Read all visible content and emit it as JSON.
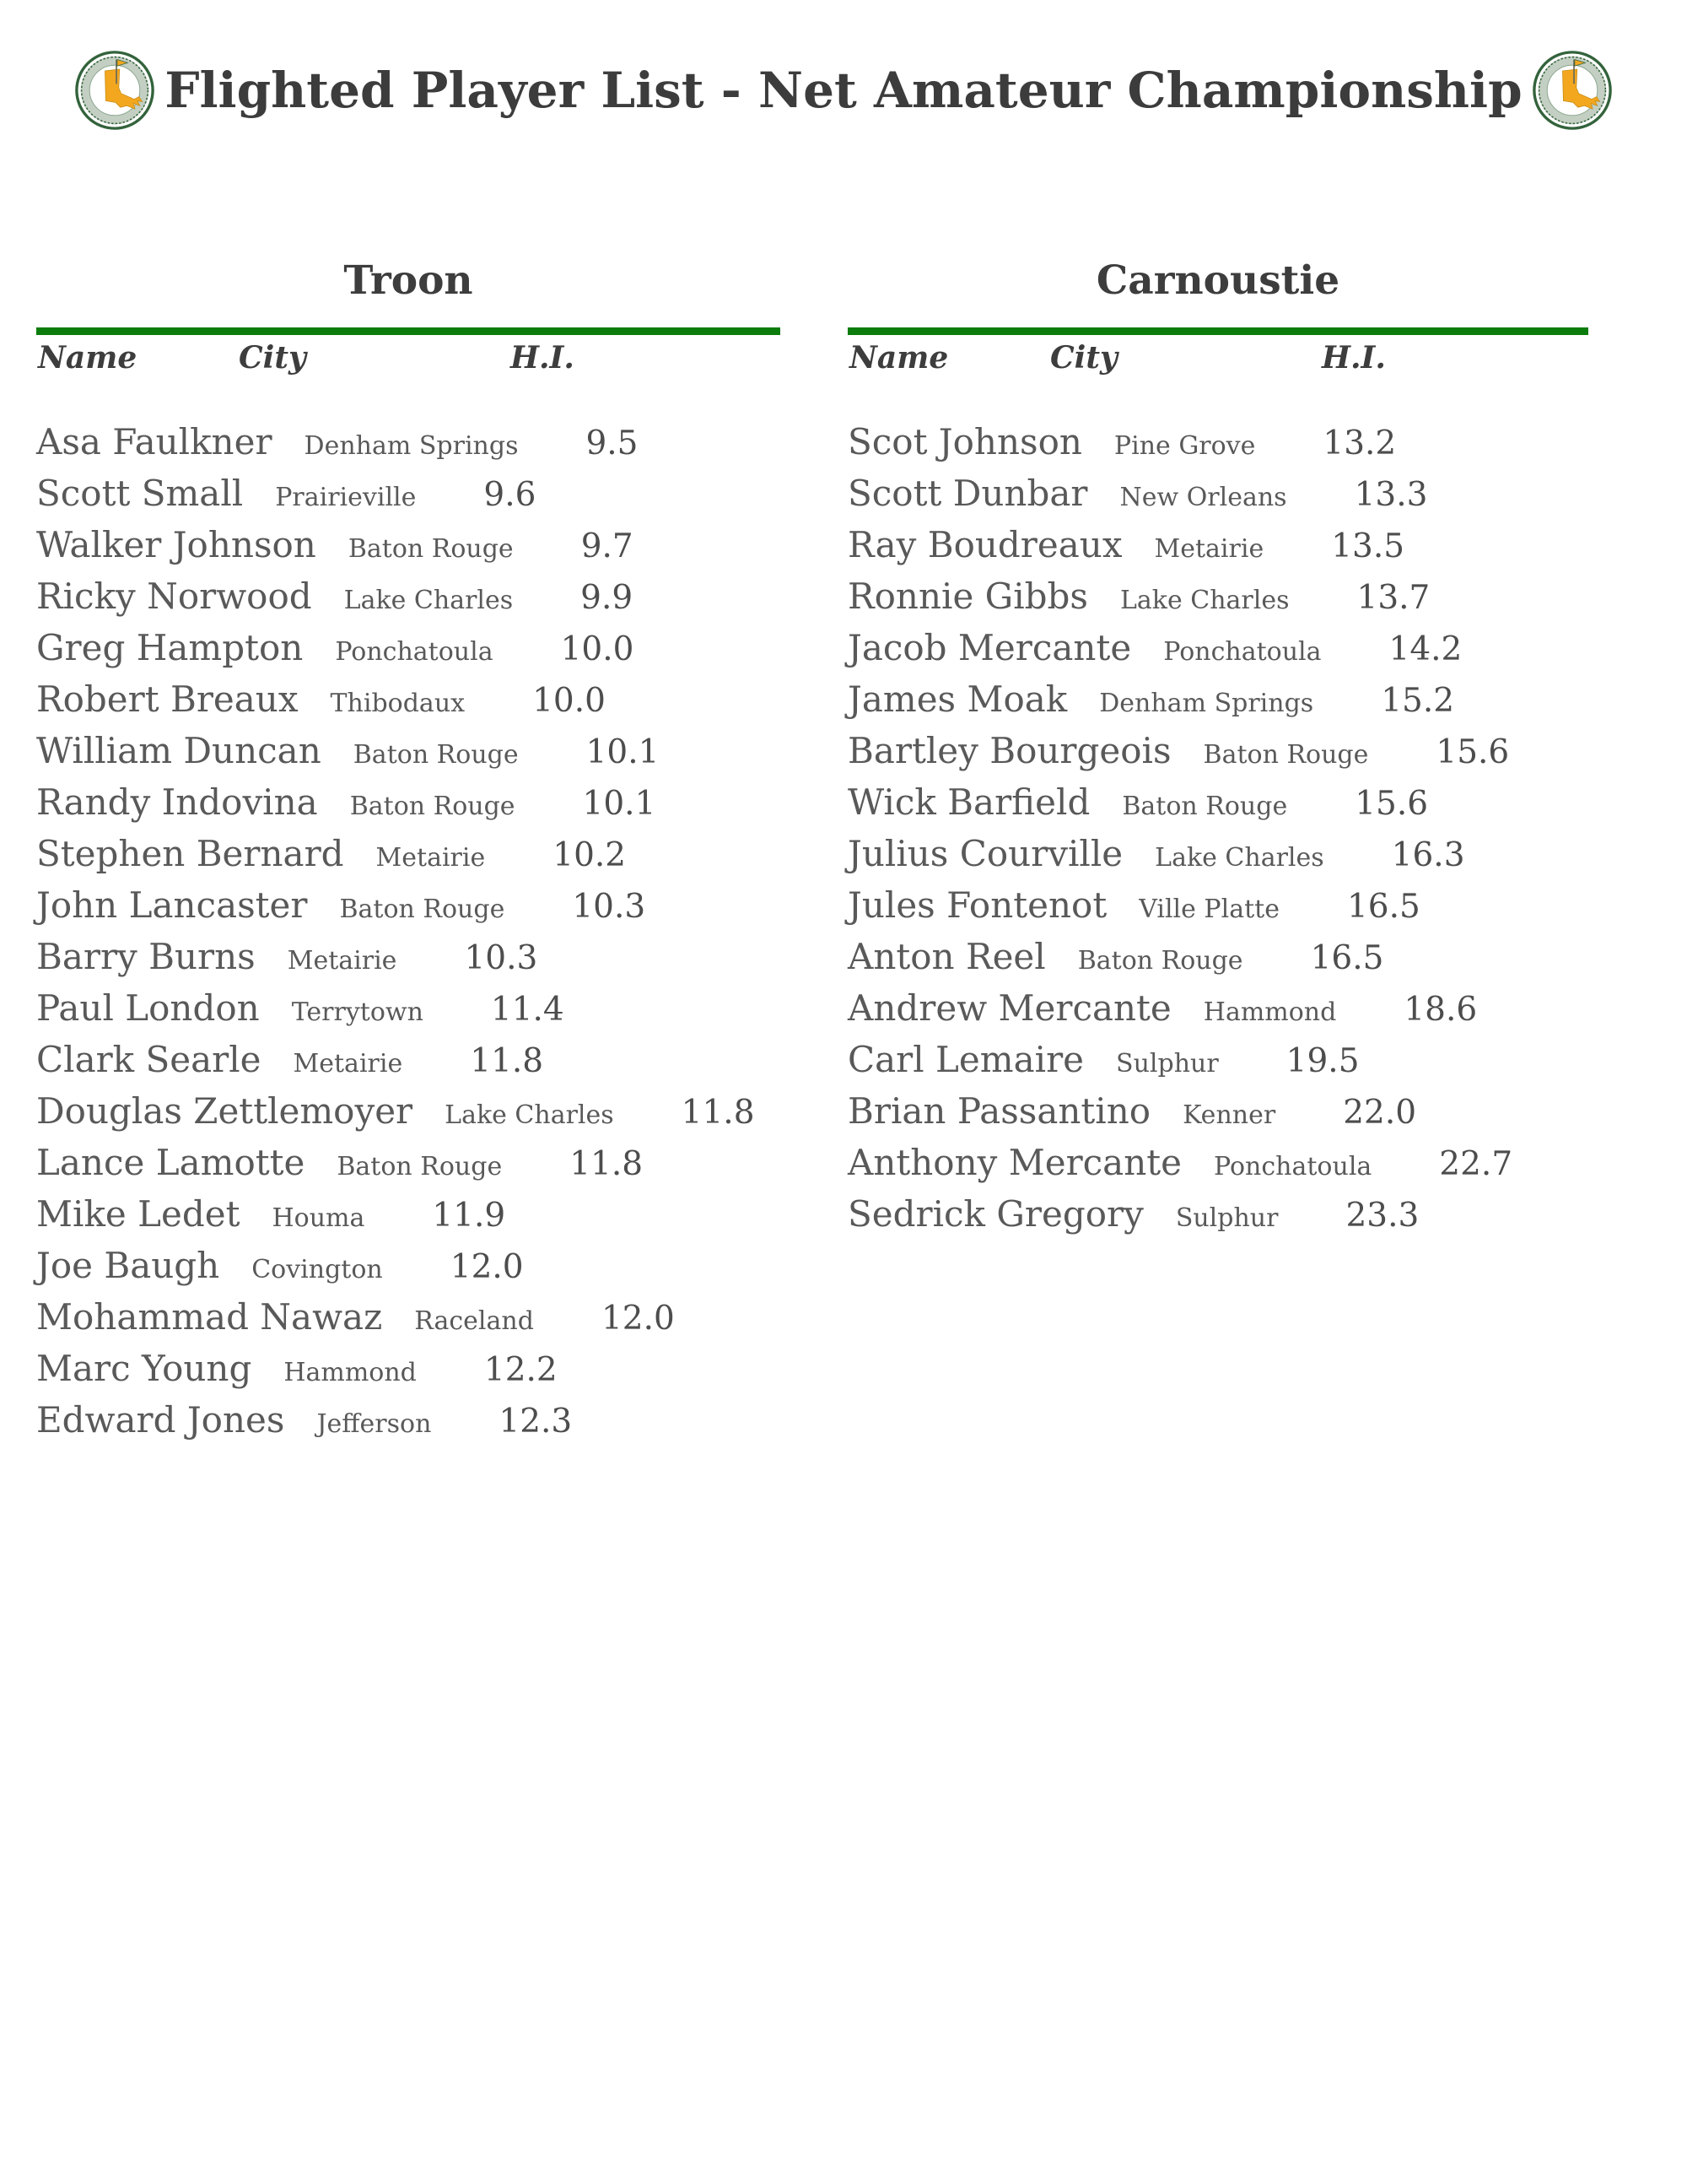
{
  "page": {
    "title": "Flighted Player List - Net Amateur Championship"
  },
  "colors": {
    "accent_green": "#0c7c0c",
    "title_text": "#3c3c3c",
    "player_text": "#595959",
    "logo_gold": "#f2a71f",
    "logo_green": "#33633c"
  },
  "icons": {
    "left_logo": "louisiana-golf-association-seal",
    "right_logo": "louisiana-golf-association-seal"
  },
  "table_headers": {
    "name": "Name",
    "city": "City",
    "hi": "H.I."
  },
  "flights": [
    {
      "name": "Troon",
      "players": [
        {
          "name": "Asa Faulkner",
          "city": "Denham Springs",
          "hi": "9.5"
        },
        {
          "name": "Scott Small",
          "city": "Prairieville",
          "hi": "9.6"
        },
        {
          "name": "Walker Johnson",
          "city": "Baton Rouge",
          "hi": "9.7"
        },
        {
          "name": "Ricky Norwood",
          "city": "Lake Charles",
          "hi": "9.9"
        },
        {
          "name": "Greg Hampton",
          "city": "Ponchatoula",
          "hi": "10.0"
        },
        {
          "name": "Robert Breaux",
          "city": "Thibodaux",
          "hi": "10.0"
        },
        {
          "name": "William Duncan",
          "city": "Baton Rouge",
          "hi": "10.1"
        },
        {
          "name": "Randy Indovina",
          "city": "Baton Rouge",
          "hi": "10.1"
        },
        {
          "name": "Stephen Bernard",
          "city": "Metairie",
          "hi": "10.2"
        },
        {
          "name": "John Lancaster",
          "city": "Baton Rouge",
          "hi": "10.3"
        },
        {
          "name": "Barry Burns",
          "city": "Metairie",
          "hi": "10.3"
        },
        {
          "name": "Paul London",
          "city": "Terrytown",
          "hi": "11.4"
        },
        {
          "name": "Clark Searle",
          "city": "Metairie",
          "hi": "11.8"
        },
        {
          "name": "Douglas Zettlemoyer",
          "city": "Lake Charles",
          "hi": "11.8"
        },
        {
          "name": "Lance Lamotte",
          "city": "Baton Rouge",
          "hi": "11.8"
        },
        {
          "name": "Mike Ledet",
          "city": "Houma",
          "hi": "11.9"
        },
        {
          "name": "Joe Baugh",
          "city": "Covington",
          "hi": "12.0"
        },
        {
          "name": "Mohammad Nawaz",
          "city": "Raceland",
          "hi": "12.0"
        },
        {
          "name": "Marc Young",
          "city": "Hammond",
          "hi": "12.2"
        },
        {
          "name": "Edward Jones",
          "city": "Jefferson",
          "hi": "12.3"
        }
      ]
    },
    {
      "name": "Carnoustie",
      "players": [
        {
          "name": "Scot Johnson",
          "city": "Pine Grove",
          "hi": "13.2"
        },
        {
          "name": "Scott Dunbar",
          "city": "New Orleans",
          "hi": "13.3"
        },
        {
          "name": "Ray Boudreaux",
          "city": "Metairie",
          "hi": "13.5"
        },
        {
          "name": "Ronnie Gibbs",
          "city": "Lake Charles",
          "hi": "13.7"
        },
        {
          "name": "Jacob Mercante",
          "city": "Ponchatoula",
          "hi": "14.2"
        },
        {
          "name": "James Moak",
          "city": "Denham Springs",
          "hi": "15.2"
        },
        {
          "name": "Bartley Bourgeois",
          "city": "Baton Rouge",
          "hi": "15.6"
        },
        {
          "name": "Wick Barfield",
          "city": "Baton Rouge",
          "hi": "15.6"
        },
        {
          "name": "Julius Courville",
          "city": "Lake Charles",
          "hi": "16.3"
        },
        {
          "name": "Jules Fontenot",
          "city": "Ville Platte",
          "hi": "16.5"
        },
        {
          "name": "Anton Reel",
          "city": "Baton Rouge",
          "hi": "16.5"
        },
        {
          "name": "Andrew Mercante",
          "city": "Hammond",
          "hi": "18.6"
        },
        {
          "name": "Carl Lemaire",
          "city": "Sulphur",
          "hi": "19.5"
        },
        {
          "name": "Brian Passantino",
          "city": "Kenner",
          "hi": "22.0"
        },
        {
          "name": "Anthony Mercante",
          "city": "Ponchatoula",
          "hi": "22.7"
        },
        {
          "name": "Sedrick Gregory",
          "city": "Sulphur",
          "hi": "23.3"
        }
      ]
    }
  ]
}
